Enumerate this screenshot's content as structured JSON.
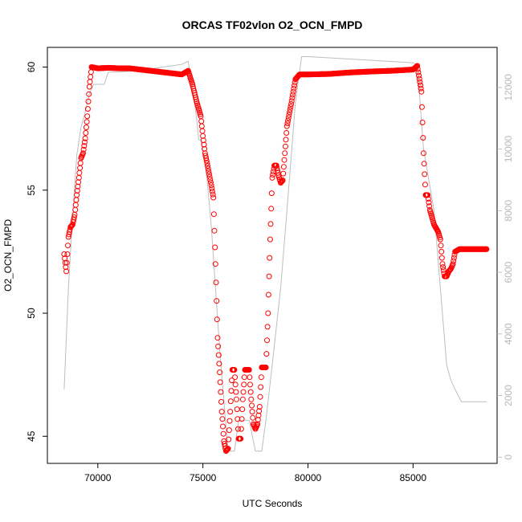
{
  "chart_data": {
    "type": "scatter",
    "title": "ORCAS TF02vlon O2_OCN_FMPD",
    "xlabel": "UTC Seconds",
    "ylabel": "O2_OCN_FMPD",
    "xlim": [
      67600,
      89000
    ],
    "ylim": [
      43.9,
      60.8
    ],
    "y2lim": [
      -200,
      13300
    ],
    "x_ticks": [
      70000,
      75000,
      80000,
      85000
    ],
    "y_ticks": [
      45,
      50,
      55,
      60
    ],
    "y2_ticks": [
      0,
      2000,
      4000,
      6000,
      8000,
      10000,
      12000
    ],
    "grid": false,
    "colors": {
      "primary": "#ff0000",
      "secondary": "#bebebe"
    },
    "series": [
      {
        "role": "primary",
        "style": "open-circles",
        "points": [
          [
            68400,
            52.4
          ],
          [
            68500,
            51.7
          ],
          [
            68600,
            53.1
          ],
          [
            68700,
            53.5
          ],
          [
            68800,
            53.6
          ],
          [
            68900,
            54.0
          ],
          [
            69000,
            54.8
          ],
          [
            69100,
            55.5
          ],
          [
            69200,
            56.3
          ],
          [
            69300,
            56.5
          ],
          [
            69400,
            57.1
          ],
          [
            69500,
            58.0
          ],
          [
            69600,
            59.2
          ],
          [
            69700,
            60.0
          ],
          [
            70000,
            59.95
          ],
          [
            70500,
            59.97
          ],
          [
            71000,
            59.95
          ],
          [
            71500,
            59.95
          ],
          [
            72000,
            59.9
          ],
          [
            72500,
            59.85
          ],
          [
            73000,
            59.8
          ],
          [
            73500,
            59.75
          ],
          [
            74000,
            59.7
          ],
          [
            74300,
            59.85
          ],
          [
            74500,
            59.3
          ],
          [
            74700,
            58.6
          ],
          [
            74900,
            58.0
          ],
          [
            75000,
            57.2
          ],
          [
            75100,
            56.5
          ],
          [
            75200,
            56.1
          ],
          [
            75400,
            55.2
          ],
          [
            75500,
            54.7
          ],
          [
            75600,
            52.0
          ],
          [
            75700,
            49.0
          ],
          [
            75800,
            47.6
          ],
          [
            75900,
            46.0
          ],
          [
            76000,
            44.8
          ],
          [
            76100,
            44.4
          ],
          [
            76200,
            44.5
          ],
          [
            76300,
            46.0
          ],
          [
            76400,
            47.7
          ],
          [
            76500,
            47.7
          ],
          [
            76600,
            46.5
          ],
          [
            76700,
            44.9
          ],
          [
            76800,
            44.9
          ],
          [
            76900,
            46.5
          ],
          [
            77000,
            47.7
          ],
          [
            77200,
            47.7
          ],
          [
            77300,
            46.5
          ],
          [
            77400,
            45.5
          ],
          [
            77500,
            45.3
          ],
          [
            77600,
            45.5
          ],
          [
            77700,
            46.2
          ],
          [
            77800,
            47.8
          ],
          [
            78000,
            47.8
          ],
          [
            78100,
            50.0
          ],
          [
            78200,
            53.0
          ],
          [
            78300,
            55.5
          ],
          [
            78400,
            56.0
          ],
          [
            78500,
            56.0
          ],
          [
            78600,
            55.6
          ],
          [
            78700,
            55.3
          ],
          [
            78800,
            55.4
          ],
          [
            78900,
            56.5
          ],
          [
            79000,
            57.6
          ],
          [
            79200,
            58.5
          ],
          [
            79400,
            59.5
          ],
          [
            79600,
            59.7
          ],
          [
            80000,
            59.7
          ],
          [
            81000,
            59.72
          ],
          [
            82000,
            59.78
          ],
          [
            83000,
            59.82
          ],
          [
            84000,
            59.85
          ],
          [
            85000,
            59.9
          ],
          [
            85200,
            60.05
          ],
          [
            85400,
            59.0
          ],
          [
            85500,
            56.5
          ],
          [
            85600,
            54.8
          ],
          [
            85700,
            54.8
          ],
          [
            85800,
            54.2
          ],
          [
            86000,
            53.6
          ],
          [
            86200,
            53.3
          ],
          [
            86300,
            53.0
          ],
          [
            86400,
            52.0
          ],
          [
            86500,
            51.5
          ],
          [
            86600,
            51.5
          ],
          [
            86700,
            51.7
          ],
          [
            86800,
            51.8
          ],
          [
            86900,
            52.0
          ],
          [
            87000,
            52.5
          ],
          [
            87200,
            52.6
          ],
          [
            87500,
            52.6
          ],
          [
            88000,
            52.6
          ],
          [
            88500,
            52.6
          ]
        ]
      },
      {
        "role": "secondary",
        "style": "line",
        "points": [
          [
            68400,
            2200
          ],
          [
            68600,
            5500
          ],
          [
            68800,
            7800
          ],
          [
            69000,
            9800
          ],
          [
            69200,
            10700
          ],
          [
            69400,
            11200
          ],
          [
            69600,
            11800
          ],
          [
            69800,
            12100
          ],
          [
            70000,
            12100
          ],
          [
            70300,
            12100
          ],
          [
            70500,
            12500
          ],
          [
            71000,
            12500
          ],
          [
            72000,
            12550
          ],
          [
            73000,
            12650
          ],
          [
            74000,
            12750
          ],
          [
            74300,
            12850
          ],
          [
            74500,
            12000
          ],
          [
            74700,
            11000
          ],
          [
            74800,
            10300
          ],
          [
            74900,
            10300
          ],
          [
            75000,
            10000
          ],
          [
            75200,
            9000
          ],
          [
            75400,
            7500
          ],
          [
            75600,
            5500
          ],
          [
            75800,
            3500
          ],
          [
            76000,
            1800
          ],
          [
            76200,
            200
          ],
          [
            76500,
            200
          ],
          [
            76700,
            1200
          ],
          [
            76900,
            1200
          ],
          [
            77200,
            1200
          ],
          [
            77500,
            200
          ],
          [
            77800,
            200
          ],
          [
            78000,
            1200
          ],
          [
            78300,
            3000
          ],
          [
            78700,
            5500
          ],
          [
            79000,
            8000
          ],
          [
            79400,
            11500
          ],
          [
            79700,
            13000
          ],
          [
            80000,
            13000
          ],
          [
            82500,
            12900
          ],
          [
            85000,
            12800
          ],
          [
            85200,
            12750
          ],
          [
            85500,
            10000
          ],
          [
            86000,
            8000
          ],
          [
            86300,
            5500
          ],
          [
            86600,
            3000
          ],
          [
            86800,
            2500
          ],
          [
            87000,
            2200
          ],
          [
            87300,
            1800
          ],
          [
            88500,
            1800
          ]
        ]
      }
    ]
  }
}
